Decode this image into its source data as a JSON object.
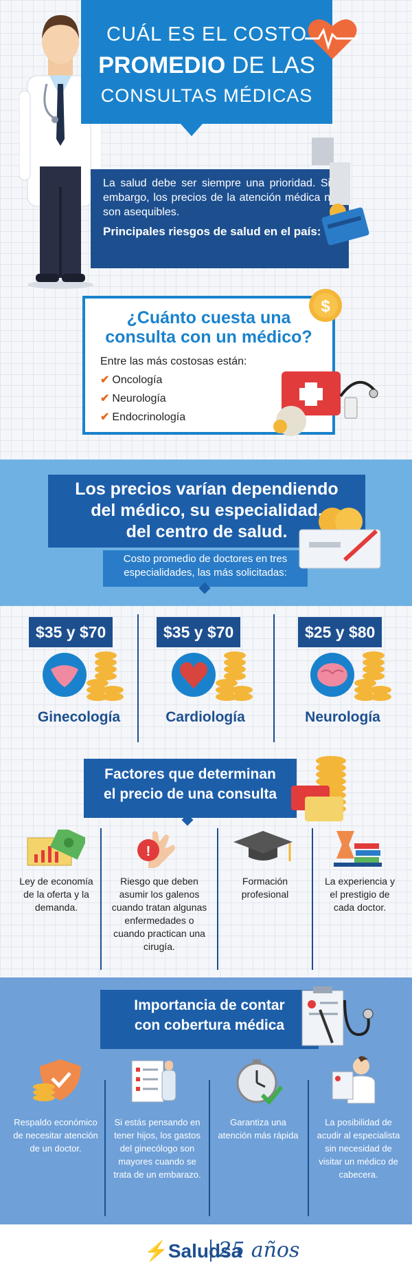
{
  "header": {
    "line1": "CUÁL ES EL COSTO",
    "line2_bold": "PROMEDIO",
    "line2_rest": " DE LAS",
    "line3": "CONSULTAS MÉDICAS"
  },
  "intro": {
    "text": "La salud debe ser siempre una prioridad. Sin embargo, los precios de la atención médica no son asequibles.",
    "risks": "Principales riesgos de salud en el país:"
  },
  "cuanto": {
    "question_line1": "¿Cuánto cuesta una",
    "question_line2": "consulta con un médico?",
    "lead": "Entre las más costosas están:",
    "items": [
      "Oncología",
      "Neurología",
      "Endocrinología"
    ]
  },
  "precios": {
    "line1": "Los precios varían dependiendo",
    "line2": "del médico, su especialidad,",
    "line3": "del centro de salud.",
    "sub_line1": "Costo promedio de doctores en tres",
    "sub_line2": "especialidades, las más solicitadas:"
  },
  "specialties": [
    {
      "price": "$35 y $70",
      "name": "Ginecología"
    },
    {
      "price": "$35 y $70",
      "name": "Cardiología"
    },
    {
      "price": "$25 y $80",
      "name": "Neurología"
    }
  ],
  "factores": {
    "title_line1": "Factores que determinan",
    "title_line2": "el precio de una consulta",
    "items": [
      [
        "Ley de economía",
        "de la oferta y la",
        "demanda."
      ],
      [
        "Riesgo que deben",
        "asumir los galenos",
        "cuando tratan algunas",
        "enfermedades o",
        "cuando practican una",
        "cirugía."
      ],
      [
        "Formación",
        "profesional"
      ],
      [
        "La experiencia y",
        "el prestigio de",
        "cada doctor."
      ]
    ]
  },
  "importancia": {
    "title_line1": "Importancia de contar",
    "title_line2": "con cobertura médica",
    "items": [
      [
        "Respaldo económico",
        "de necesitar atención",
        "de un doctor."
      ],
      [
        "Si estás pensando en",
        "tener hijos, los gastos",
        "del ginecólogo son",
        "mayores cuando se",
        "trata de un embarazo."
      ],
      [
        "Garantiza una",
        "atención más rápida"
      ],
      [
        "La posibilidad de",
        "acudir al especialista",
        "sin necesidad de",
        "visitar un médico de",
        "cabecera."
      ]
    ]
  },
  "footer": {
    "brand": "Saludsa",
    "anniversary": "25 años"
  },
  "colors": {
    "primary_blue": "#1a82cc",
    "dark_blue": "#1d4f8f",
    "accent_orange": "#e66a1f",
    "light_blue": "#6fb1e3"
  }
}
